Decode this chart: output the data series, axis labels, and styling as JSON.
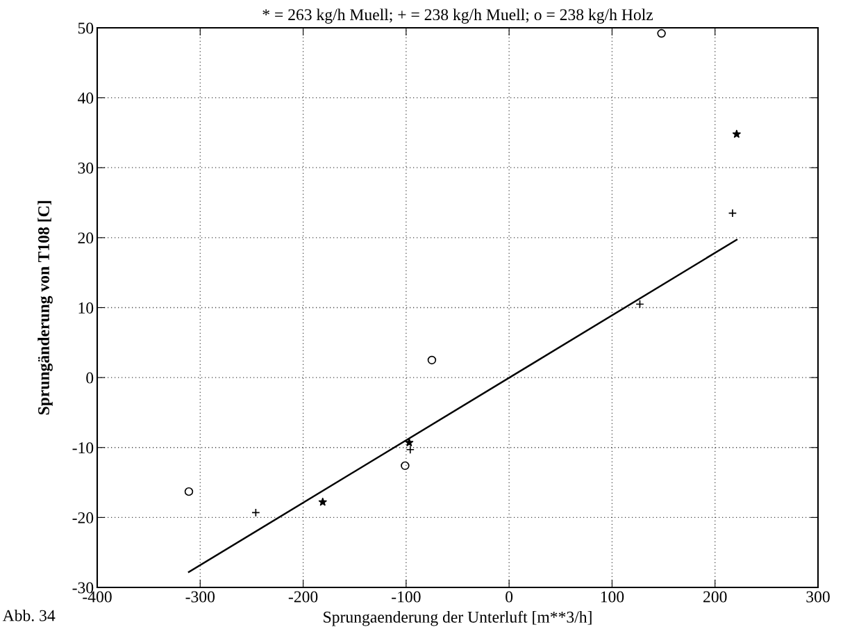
{
  "chart_data": {
    "type": "scatter",
    "title": "* = 263 kg/h Muell; + = 238 kg/h Muell; o = 238 kg/h Holz",
    "xlabel": "Sprungaenderung der Unterluft [m**3/h]",
    "ylabel": "Sprungänderung von T108 [C]",
    "annotations": [
      "Abb. 34"
    ],
    "xlim": [
      -400,
      300
    ],
    "xticks": [
      -400,
      -300,
      -200,
      -100,
      0,
      100,
      200,
      300
    ],
    "ylim": [
      -30,
      50
    ],
    "yticks": [
      -30,
      -20,
      -10,
      0,
      10,
      20,
      30,
      40,
      50
    ],
    "grid": true,
    "legend": false,
    "series": [
      {
        "marker": "circle",
        "color": "#000000",
        "x": [
          -311,
          -101,
          -75,
          148
        ],
        "values": [
          -16.3,
          -12.6,
          2.5,
          49.2
        ]
      },
      {
        "marker": "cross",
        "color": "#000000",
        "x": [
          -246,
          -96,
          127,
          217
        ],
        "values": [
          -19.3,
          -10.3,
          10.5,
          23.5
        ]
      },
      {
        "marker": "star",
        "color": "#000000",
        "x": [
          -181,
          -97,
          221
        ],
        "values": [
          -17.8,
          -9.3,
          34.8
        ]
      },
      {
        "type": "line",
        "marker": "none",
        "line_style": "solid",
        "color": "#000000",
        "x": [
          -311,
          221
        ],
        "values": [
          -27.8,
          19.7
        ]
      }
    ]
  }
}
